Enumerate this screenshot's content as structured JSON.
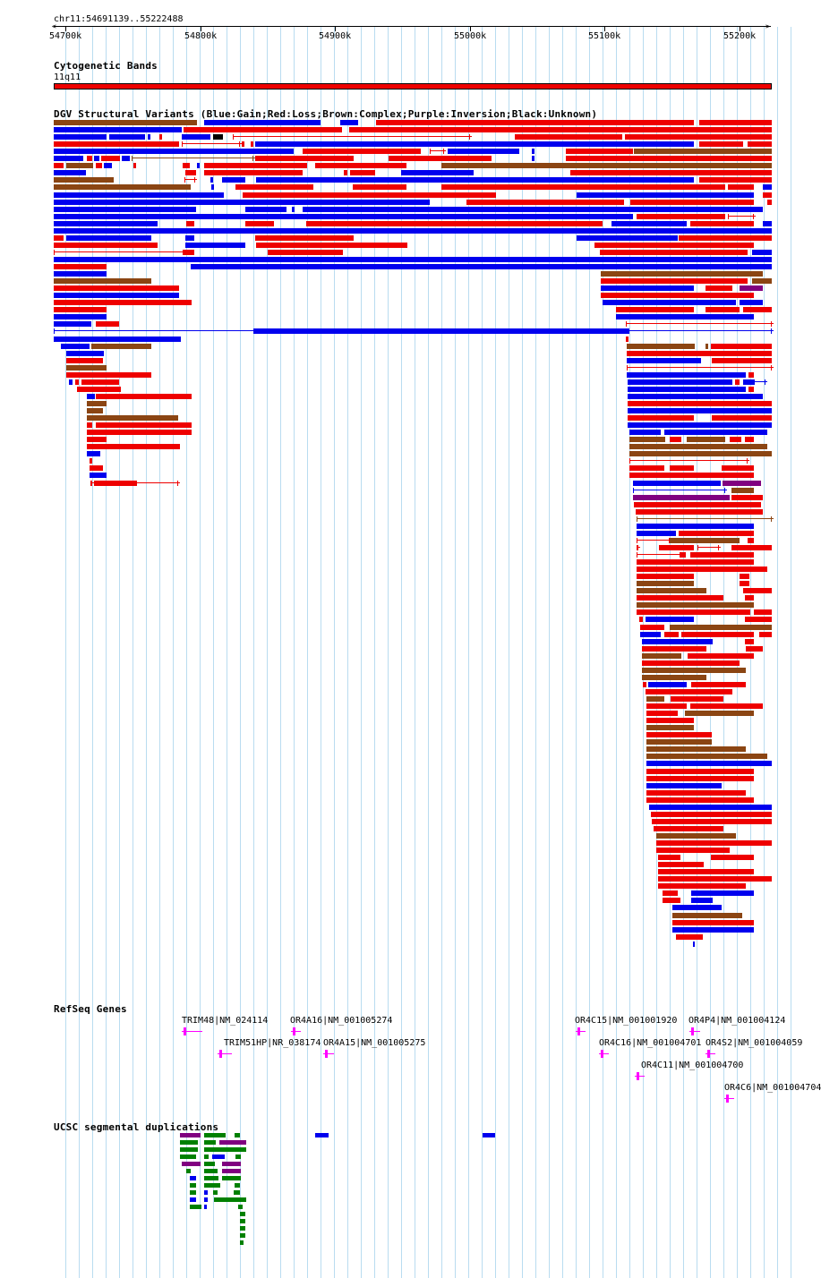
{
  "coordinate_label": "chr11:54691139..55222488",
  "ruler": {
    "ticks": [
      "54700k",
      "54800k",
      "54900k",
      "55000k",
      "55100k",
      "55200k"
    ]
  },
  "tracks": {
    "cytoband": {
      "title": "Cytogenetic Bands",
      "band_label": "11q11"
    },
    "dgv": {
      "title": "DGV Structural Variants (Blue:Gain;Red:Loss;Brown:Complex;Purple:Inversion;Black:Unknown)"
    },
    "refseq": {
      "title": "RefSeq Genes",
      "genes": [
        "TRIM48|NM_024114",
        "OR4A16|NM_001005274",
        "OR4C15|NM_001001920",
        "OR4P4|NM_001004124",
        "TRIM51HP|NR_038174",
        "OR4A15|NM_001005275",
        "OR4C16|NM_001004701",
        "OR4S2|NM_001004059",
        "OR4C11|NM_001004700",
        "OR4C6|NM_001004704"
      ]
    },
    "segdup": {
      "title": "UCSC segmental duplications"
    }
  },
  "colors": {
    "gain": "#0000ee",
    "loss": "#ee0000",
    "complex": "#8b4513",
    "inversion": "#800080",
    "unknown": "#000000",
    "gene": "#ff00ff",
    "segdup_green": "#008000",
    "gridline": "#b9dcf0"
  }
}
